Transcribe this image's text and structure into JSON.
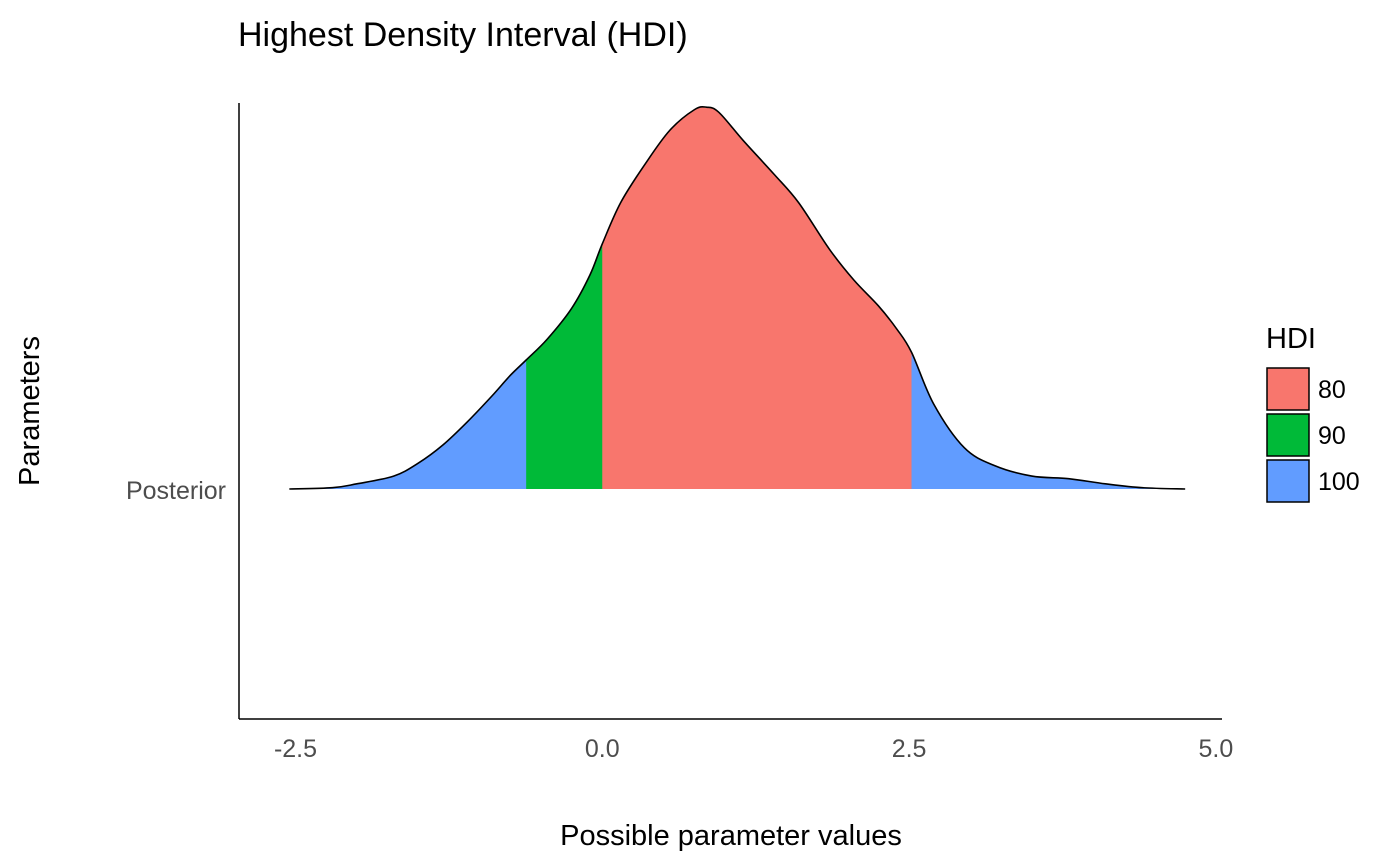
{
  "chart_data": {
    "type": "area",
    "title": "Highest Density Interval (HDI)",
    "xlabel": "Possible parameter values",
    "ylabel": "Parameters",
    "xlim": [
      -2.96,
      5.05
    ],
    "x_ticks": [
      "-2.5",
      "0.0",
      "2.5",
      "5.0"
    ],
    "x_tick_values": [
      -2.5,
      0.0,
      2.5,
      5.0
    ],
    "y_categories": [
      "Posterior"
    ],
    "grid": false,
    "legend": {
      "title": "HDI",
      "position": "right",
      "entries": [
        {
          "label": "80",
          "color": "#F8766D"
        },
        {
          "label": "90",
          "color": "#00BA38"
        },
        {
          "label": "100",
          "color": "#619CFF"
        }
      ]
    },
    "intervals": [
      {
        "name": "100",
        "lower": -2.55,
        "upper": 4.75
      },
      {
        "name": "90",
        "lower": -0.62,
        "upper": 2.52
      },
      {
        "name": "80",
        "lower": 0.0,
        "upper": 2.52
      }
    ],
    "density": {
      "x": [
        -2.55,
        -2.2,
        -2.0,
        -1.7,
        -1.5,
        -1.3,
        -1.1,
        -0.9,
        -0.75,
        -0.62,
        -0.45,
        -0.25,
        -0.1,
        0.0,
        0.15,
        0.35,
        0.55,
        0.75,
        0.85,
        0.95,
        1.15,
        1.4,
        1.6,
        1.85,
        2.05,
        2.25,
        2.4,
        2.52,
        2.7,
        2.95,
        3.2,
        3.5,
        3.8,
        4.1,
        4.4,
        4.75
      ],
      "y": [
        0.0,
        0.005,
        0.02,
        0.05,
        0.1,
        0.17,
        0.26,
        0.36,
        0.44,
        0.5,
        0.58,
        0.7,
        0.83,
        0.95,
        1.11,
        1.26,
        1.39,
        1.47,
        1.48,
        1.46,
        1.35,
        1.22,
        1.11,
        0.93,
        0.81,
        0.71,
        0.62,
        0.53,
        0.33,
        0.16,
        0.09,
        0.05,
        0.04,
        0.02,
        0.005,
        0.0
      ]
    }
  }
}
